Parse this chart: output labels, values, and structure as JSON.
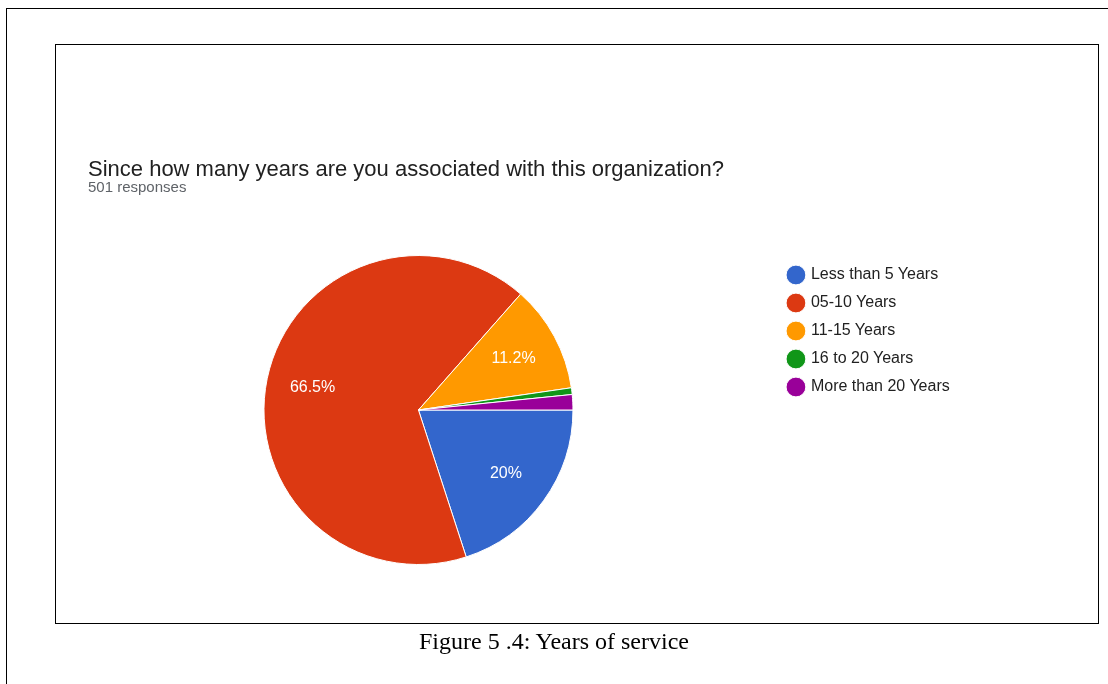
{
  "chart_data": {
    "type": "pie",
    "title": "Since how many years are you associated with this organization?",
    "subtitle": "501 responses",
    "categories": [
      "Less than 5 Years",
      "05-10 Years",
      "11-15 Years",
      "16 to 20 Years",
      "More than 20 Years"
    ],
    "values": [
      20,
      66.5,
      11.2,
      0.7,
      1.6
    ],
    "colors": [
      "#3366cc",
      "#dc3912",
      "#ff9900",
      "#109618",
      "#990099"
    ],
    "value_labels": [
      "20%",
      "66.5%",
      "11.2%",
      null,
      null
    ],
    "legend": "right",
    "annotations": [
      "Figure  5 .4: Years of service"
    ]
  }
}
